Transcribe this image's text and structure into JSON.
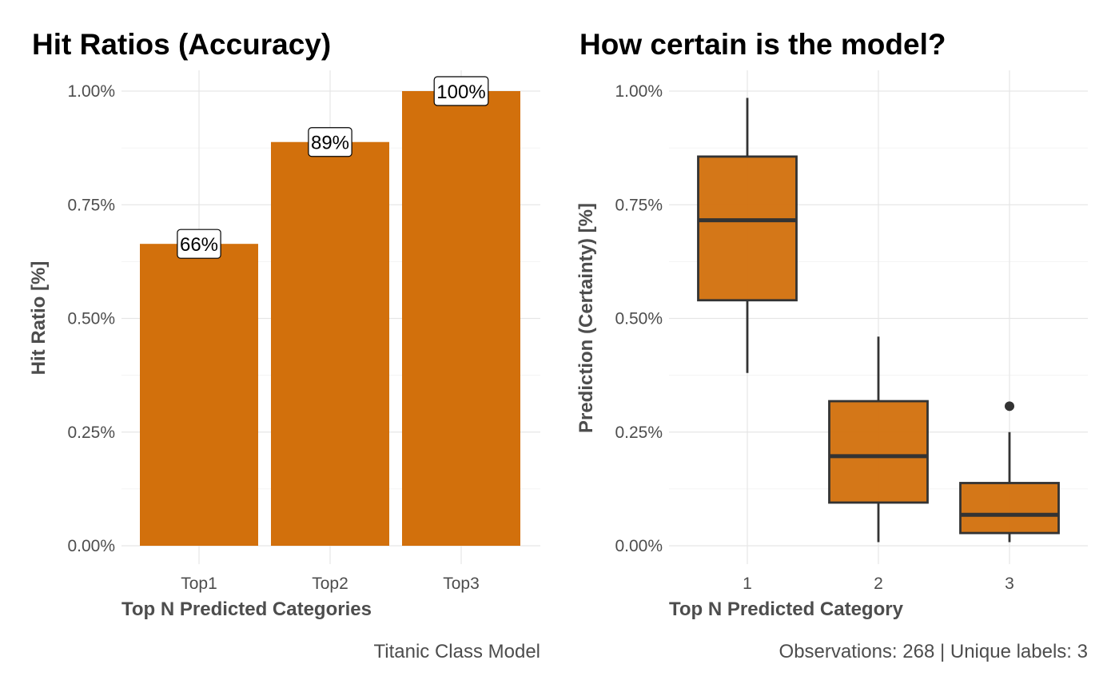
{
  "colors": {
    "bar_fill": "#D2700C",
    "box_fill": "#D2700C",
    "box_line": "#333333",
    "label_border": "#000000",
    "label_bg": "#ffffff"
  },
  "chart_data": [
    {
      "type": "bar",
      "title": "Hit Ratios (Accuracy)",
      "xlabel": "Top N Predicted Categories",
      "ylabel": "Hit Ratio [%]",
      "caption": "Titanic Class Model",
      "categories": [
        "Top1",
        "Top2",
        "Top3"
      ],
      "values": [
        0.664,
        0.888,
        1.0
      ],
      "data_labels": [
        "66%",
        "89%",
        "100%"
      ],
      "ylim": [
        0,
        1
      ],
      "yticks": [
        0,
        0.25,
        0.5,
        0.75,
        1.0
      ],
      "ytick_labels": [
        "0.00%",
        "0.25%",
        "0.50%",
        "0.75%",
        "1.00%"
      ],
      "grid": true
    },
    {
      "type": "box",
      "title": "How certain is the model?",
      "xlabel": "Top N Predicted Category",
      "ylabel": "Prediction (Certainty) [%]",
      "caption": "Observations: 268 | Unique labels: 3",
      "categories": [
        "1",
        "2",
        "3"
      ],
      "boxes": [
        {
          "min": 0.38,
          "q1": 0.54,
          "median": 0.716,
          "q3": 0.856,
          "max": 0.985,
          "outliers": []
        },
        {
          "min": 0.008,
          "q1": 0.095,
          "median": 0.197,
          "q3": 0.318,
          "max": 0.46,
          "outliers": []
        },
        {
          "min": 0.008,
          "q1": 0.028,
          "median": 0.068,
          "q3": 0.138,
          "max": 0.25,
          "outliers": [
            0.307
          ]
        }
      ],
      "ylim": [
        0,
        1
      ],
      "yticks": [
        0,
        0.25,
        0.5,
        0.75,
        1.0
      ],
      "ytick_labels": [
        "0.00%",
        "0.25%",
        "0.50%",
        "0.75%",
        "1.00%"
      ],
      "grid": true
    }
  ]
}
